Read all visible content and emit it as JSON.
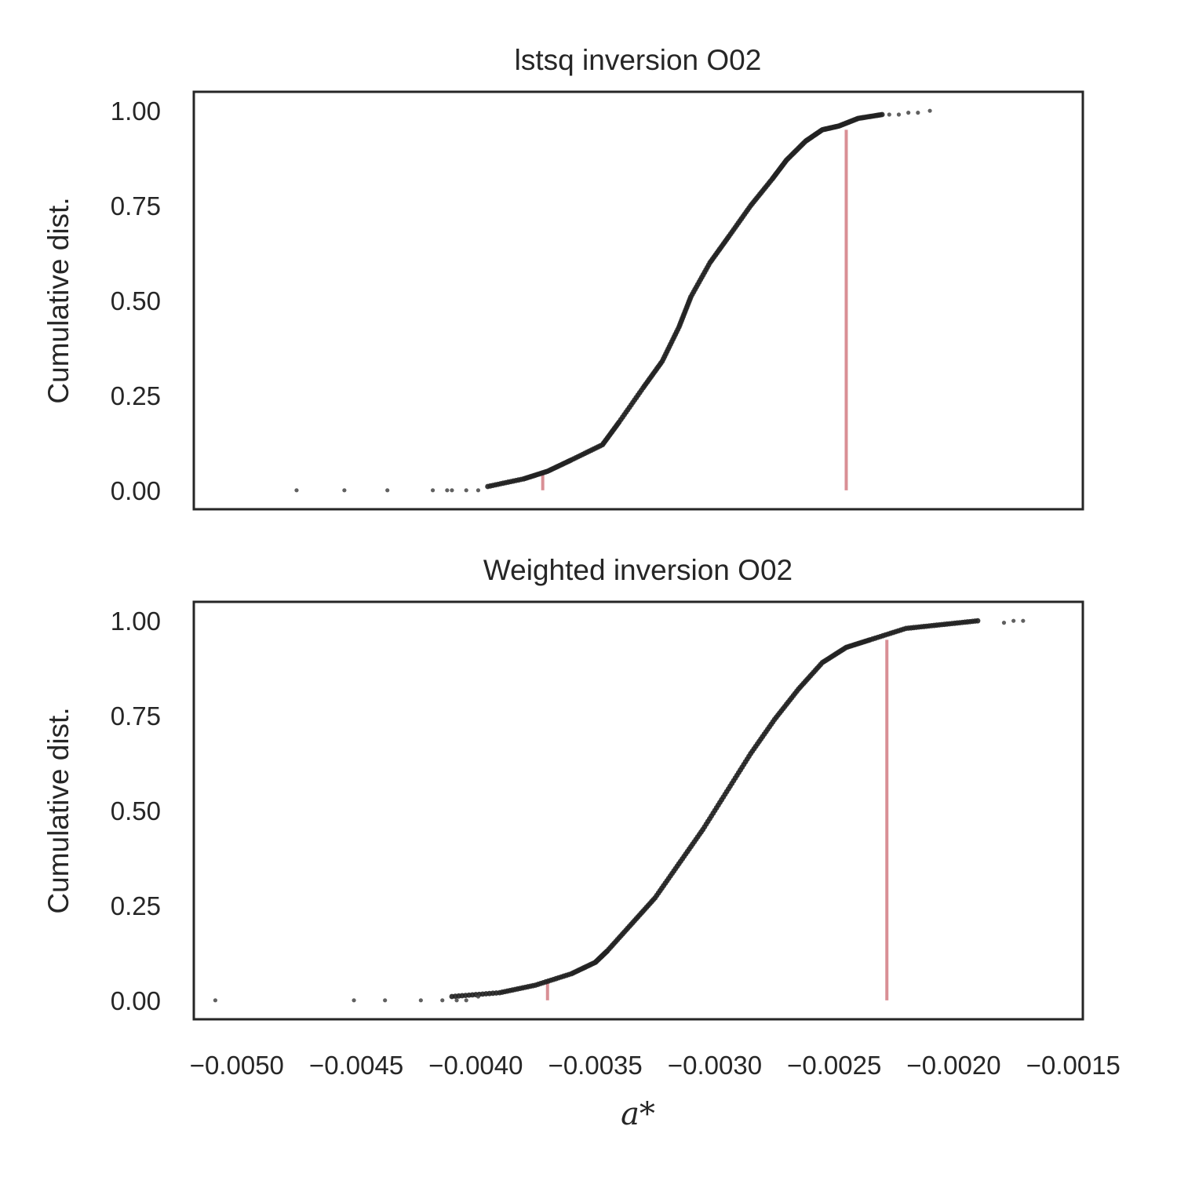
{
  "chart_data": [
    {
      "type": "scatter",
      "title": "lstsq inversion O02",
      "ylabel": "Cumulative dist.",
      "xlabel": "",
      "xlim": [
        -0.00518,
        -0.00146
      ],
      "ylim": [
        -0.05,
        1.05
      ],
      "yticks": [
        "0.00",
        "0.25",
        "0.50",
        "0.75",
        "1.00"
      ],
      "grid": false,
      "cdf_curve": {
        "x": [
          -0.00395,
          -0.0038,
          -0.0037,
          -0.0036,
          -0.00347,
          -0.0034,
          -0.0033,
          -0.00322,
          -0.00315,
          -0.0031,
          -0.00302,
          -0.00294,
          -0.00285,
          -0.00276,
          -0.0027,
          -0.00262,
          -0.00255,
          -0.00248,
          -0.0024,
          -0.0023
        ],
        "y": [
          0.01,
          0.03,
          0.05,
          0.08,
          0.12,
          0.18,
          0.27,
          0.34,
          0.43,
          0.51,
          0.6,
          0.67,
          0.75,
          0.82,
          0.87,
          0.92,
          0.95,
          0.96,
          0.98,
          0.99
        ]
      },
      "outliers": {
        "x": [
          -0.00475,
          -0.00455,
          -0.00437,
          -0.00418,
          -0.00412,
          -0.0041,
          -0.00404,
          -0.00399,
          -0.00227,
          -0.00223,
          -0.00219,
          -0.00215,
          -0.0021
        ],
        "y": [
          0.0,
          0.0,
          0.0,
          0.0,
          0.0,
          0.0,
          0.0,
          0.0,
          0.99,
          0.99,
          0.995,
          0.995,
          1.0
        ]
      },
      "vlines": [
        {
          "x": -0.00372,
          "y_top": 0.05
        },
        {
          "x": -0.00245,
          "y_top": 0.95
        }
      ],
      "colors": {
        "points": "#222222",
        "vline": "#d98f95",
        "frame": "#262626"
      }
    },
    {
      "type": "scatter",
      "title": "Weighted inversion O02",
      "ylabel": "Cumulative dist.",
      "xlabel": "a*",
      "xlim": [
        -0.00518,
        -0.00146
      ],
      "ylim": [
        -0.05,
        1.05
      ],
      "yticks": [
        "0.00",
        "0.25",
        "0.50",
        "0.75",
        "1.00"
      ],
      "xticks": [
        "−0.0050",
        "−0.0045",
        "−0.0040",
        "−0.0035",
        "−0.0030",
        "−0.0025",
        "−0.0020",
        "−0.0015"
      ],
      "xtick_values": [
        -0.005,
        -0.0045,
        -0.004,
        -0.0035,
        -0.003,
        -0.0025,
        -0.002,
        -0.0015
      ],
      "grid": false,
      "cdf_curve": {
        "x": [
          -0.0041,
          -0.0039,
          -0.00375,
          -0.0036,
          -0.0035,
          -0.00345,
          -0.00335,
          -0.00325,
          -0.00315,
          -0.00305,
          -0.00295,
          -0.00285,
          -0.00275,
          -0.00265,
          -0.00255,
          -0.00245,
          -0.00235,
          -0.0022,
          -0.00205,
          -0.0019
        ],
        "y": [
          0.01,
          0.02,
          0.04,
          0.07,
          0.1,
          0.13,
          0.2,
          0.27,
          0.36,
          0.45,
          0.55,
          0.65,
          0.74,
          0.82,
          0.89,
          0.93,
          0.95,
          0.98,
          0.99,
          1.0
        ]
      },
      "outliers": {
        "x": [
          -0.00509,
          -0.00451,
          -0.00438,
          -0.00423,
          -0.00414,
          -0.00408,
          -0.00404,
          -0.00399,
          -0.00179,
          -0.00175,
          -0.00171
        ],
        "y": [
          0.0,
          0.0,
          0.0,
          0.0,
          0.0,
          0.0,
          0.0,
          0.01,
          0.995,
          1.0,
          1.0
        ]
      },
      "vlines": [
        {
          "x": -0.0037,
          "y_top": 0.05
        },
        {
          "x": -0.00228,
          "y_top": 0.95
        }
      ],
      "colors": {
        "points": "#222222",
        "vline": "#d98f95",
        "frame": "#262626"
      }
    }
  ]
}
